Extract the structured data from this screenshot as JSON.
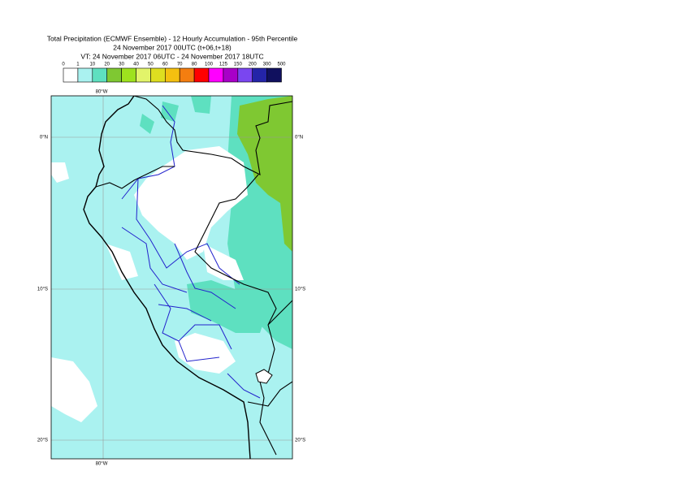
{
  "header": {
    "title": [
      "Total Precipitation (ECMWF Ensemble) - 12 Hourly Accumulation - 95th Percentile",
      "24 November 2017 00UTC (t+06,t+18)",
      "VT: 24 November 2017 06UTC - 24 November 2017 18UTC"
    ]
  },
  "legend": {
    "labels": [
      "0",
      "1",
      "10",
      "20",
      "30",
      "40",
      "50",
      "60",
      "70",
      "80",
      "100",
      "125",
      "150",
      "200",
      "300",
      "500"
    ],
    "colors": [
      "#ffffff",
      "#aaf2f0",
      "#5ee0c0",
      "#7fc832",
      "#9ee21e",
      "#e2f46a",
      "#dede20",
      "#f4c010",
      "#f47e10",
      "#ff0000",
      "#ff00ff",
      "#a800c8",
      "#7a46f0",
      "#2424a8",
      "#10105e"
    ]
  },
  "map": {
    "lon_labels": [
      "80°W"
    ],
    "lat_labels": [
      "0°N",
      "10°S",
      "20°S"
    ]
  }
}
